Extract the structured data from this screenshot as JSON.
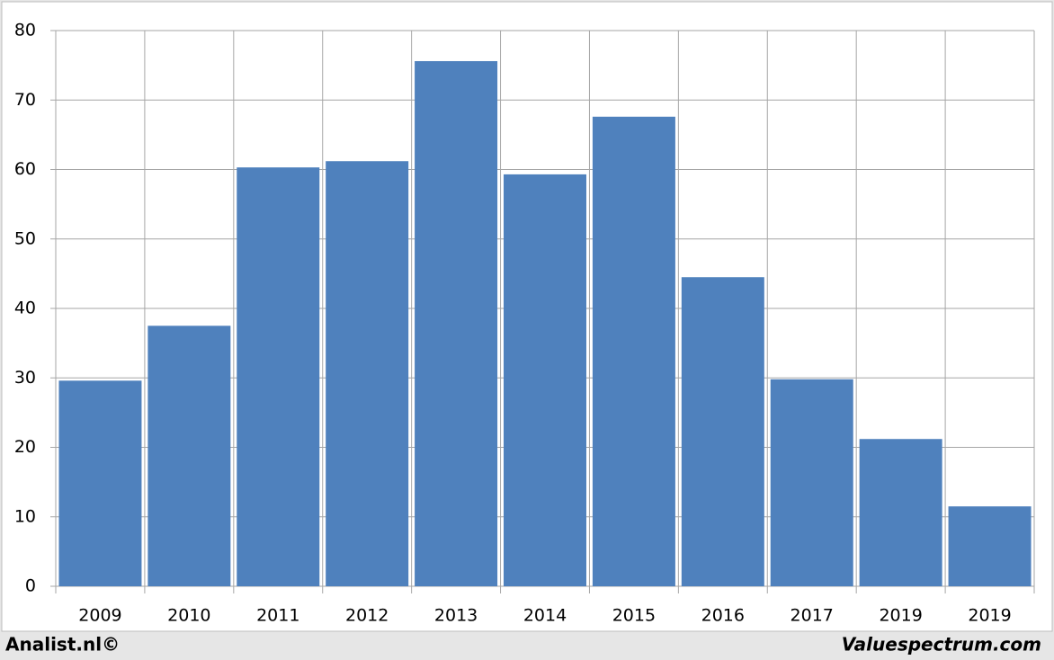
{
  "chart_data": {
    "type": "bar",
    "categories": [
      "2009",
      "2010",
      "2011",
      "2012",
      "2013",
      "2014",
      "2015",
      "2016",
      "2017",
      "2019",
      "2019"
    ],
    "values": [
      29.6,
      37.5,
      60.3,
      61.2,
      75.6,
      59.3,
      67.6,
      44.5,
      29.8,
      21.2,
      11.5
    ],
    "color": "#4f81bd",
    "ylim": [
      0,
      80
    ],
    "yticks": [
      0,
      10,
      20,
      30,
      40,
      50,
      60,
      70,
      80
    ],
    "grid": true,
    "source": "Analist.nl©",
    "credit": "Valuespectrum.com"
  }
}
